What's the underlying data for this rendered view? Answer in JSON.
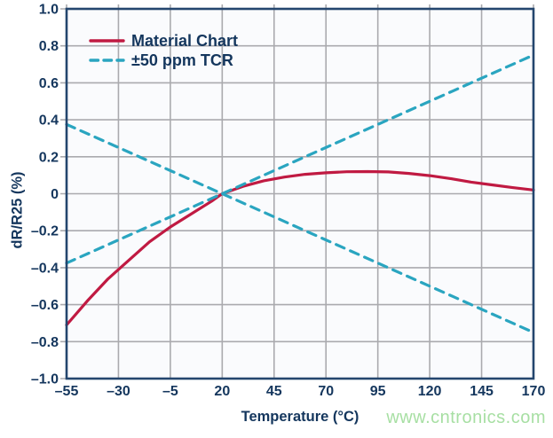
{
  "watermark": "www.cntronics.com",
  "colors": {
    "material": "#c01a42",
    "tcr": "#2aa5c0",
    "text": "#14365d",
    "grid": "#aaaaae",
    "frame": "#24466e",
    "plot_bg": "#fafbfd",
    "watermark": "#a7dfa3"
  },
  "chart_data": {
    "type": "line",
    "title": "",
    "xlabel": "Temperature (°C)",
    "ylabel": "dR/R25 (%)",
    "xlim": [
      -55,
      170
    ],
    "ylim": [
      -1.0,
      1.0
    ],
    "grid": true,
    "legend_position": "top-left",
    "x_ticks": [
      -55,
      -30,
      -5,
      20,
      45,
      70,
      95,
      120,
      145,
      170
    ],
    "x_tick_labels": [
      "–55",
      "–30",
      "–5",
      "20",
      "45",
      "70",
      "95",
      "120",
      "145",
      "170"
    ],
    "y_ticks": [
      1.0,
      0.8,
      0.6,
      0.4,
      0.2,
      0,
      -0.2,
      -0.4,
      -0.6,
      -0.8,
      -1.0
    ],
    "y_tick_labels": [
      "1.0",
      "0.8",
      "0.6",
      "0.4",
      "0.2",
      "0",
      "–0.2",
      "–0.4",
      "–0.6",
      "–0.8",
      "–1.0"
    ],
    "series": [
      {
        "name": "Material Chart",
        "style": "solid",
        "color_key": "material",
        "x": [
          -55,
          -45,
          -35,
          -25,
          -15,
          -5,
          5,
          15,
          20,
          30,
          40,
          50,
          60,
          70,
          80,
          90,
          100,
          110,
          120,
          130,
          140,
          150,
          160,
          170
        ],
        "y": [
          -0.71,
          -0.58,
          -0.46,
          -0.36,
          -0.26,
          -0.18,
          -0.11,
          -0.04,
          0,
          0.04,
          0.07,
          0.09,
          0.105,
          0.113,
          0.119,
          0.12,
          0.118,
          0.11,
          0.098,
          0.082,
          0.063,
          0.048,
          0.033,
          0.02
        ]
      },
      {
        "name": "+50 ppm TCR",
        "style": "dashed",
        "color_key": "tcr",
        "x": [
          -55,
          170
        ],
        "y": [
          -0.375,
          0.75
        ]
      },
      {
        "name": "-50 ppm TCR",
        "style": "dashed",
        "color_key": "tcr",
        "x": [
          -55,
          170
        ],
        "y": [
          0.375,
          -0.75
        ]
      }
    ],
    "legend": {
      "items": [
        {
          "label": "Material Chart",
          "style": "solid",
          "color_key": "material"
        },
        {
          "label": "±50 ppm TCR",
          "style": "dashed",
          "color_key": "tcr"
        }
      ]
    }
  }
}
